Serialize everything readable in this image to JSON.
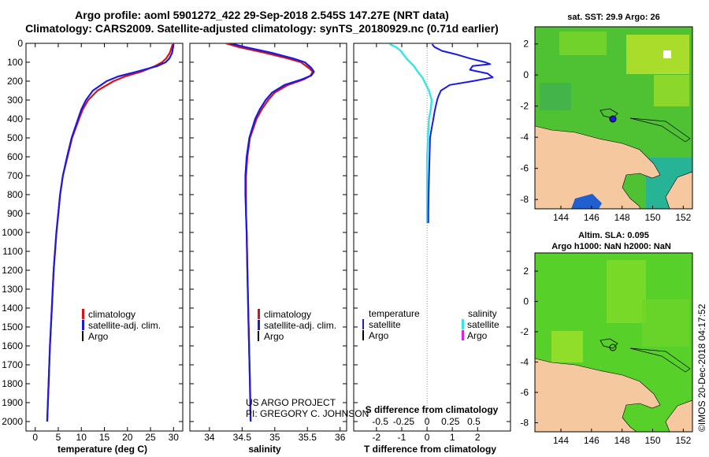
{
  "header": {
    "title_line1": "Argo profile: aoml 5901272_422 29-Sep-2018 2.545S 147.27E (NRT data)",
    "title_line2": "Climatology: CARS2009. Satellite-adjusted climatology: synTS_20180929.nc (0.71d earlier)"
  },
  "colors": {
    "climatology": "#dd1111",
    "satellite": "#1a1ae6",
    "argo": "#000000",
    "sal_satellite": "#33e6e6",
    "sal_argo": "#dd22dd",
    "land": "#f5c8a0",
    "sea_green": "#4fc233"
  },
  "depth_axis": {
    "ylim": [
      0,
      2050
    ],
    "ticks": [
      "0",
      "100",
      "200",
      "300",
      "400",
      "500",
      "600",
      "700",
      "800",
      "900",
      "1000",
      "1100",
      "1200",
      "1300",
      "1400",
      "1500",
      "1600",
      "1700",
      "1800",
      "1900",
      "2000"
    ]
  },
  "chart_data": [
    {
      "type": "line",
      "name": "temperature-profile",
      "xlabel": "temperature (deg C)",
      "xlim": [
        -2,
        32
      ],
      "xticks": [
        "0",
        "5",
        "10",
        "15",
        "20",
        "25",
        "30"
      ],
      "series": [
        {
          "name": "climatology",
          "color_key": "climatology",
          "depth": [
            5,
            20,
            50,
            80,
            100,
            120,
            150,
            175,
            200,
            250,
            300,
            350,
            400,
            500,
            600,
            700,
            800,
            900,
            1000,
            1200,
            1400,
            1600,
            1800,
            2000
          ],
          "values": [
            29.8,
            29.6,
            29.2,
            28.4,
            27.5,
            26.0,
            23.0,
            19.5,
            17.0,
            13.5,
            11.5,
            10.3,
            9.5,
            8.0,
            7.0,
            6.0,
            5.4,
            5.0,
            4.6,
            4.0,
            3.6,
            3.2,
            2.9,
            2.6
          ]
        },
        {
          "name": "satellite-adj. clim.",
          "color_key": "satellite",
          "depth": [
            5,
            20,
            50,
            80,
            100,
            120,
            150,
            175,
            200,
            250,
            300,
            350,
            400,
            500,
            600,
            700,
            800,
            900,
            1000,
            1200,
            1400,
            1600,
            1800,
            2000
          ],
          "values": [
            30.0,
            29.9,
            29.7,
            29.1,
            28.3,
            26.5,
            22.0,
            18.0,
            15.5,
            12.5,
            11.0,
            10.0,
            9.3,
            7.9,
            6.9,
            6.0,
            5.4,
            5.0,
            4.6,
            4.0,
            3.6,
            3.2,
            2.9,
            2.6
          ]
        }
      ],
      "legend": [
        "climatology",
        "satellite-adj. clim.",
        "Argo"
      ]
    },
    {
      "type": "line",
      "name": "salinity-profile",
      "xlabel": "salinity",
      "xlim": [
        33.7,
        36.1
      ],
      "xticks": [
        "34",
        "34.5",
        "35",
        "35.5",
        "36"
      ],
      "series": [
        {
          "name": "climatology",
          "color_key": "climatology",
          "depth": [
            0,
            20,
            50,
            80,
            100,
            130,
            150,
            170,
            190,
            220,
            260,
            300,
            350,
            400,
            500,
            600,
            700,
            800,
            900,
            1000,
            1200,
            1500,
            1800,
            2000
          ],
          "values": [
            34.25,
            34.45,
            34.85,
            35.2,
            35.4,
            35.52,
            35.58,
            35.55,
            35.45,
            35.2,
            35.0,
            34.9,
            34.8,
            34.72,
            34.62,
            34.58,
            34.56,
            34.56,
            34.56,
            34.57,
            34.58,
            34.6,
            34.62,
            34.63
          ]
        },
        {
          "name": "satellite-adj. clim.",
          "color_key": "satellite",
          "depth": [
            0,
            20,
            50,
            80,
            100,
            130,
            150,
            170,
            190,
            220,
            260,
            300,
            350,
            400,
            500,
            600,
            700,
            800,
            900,
            1000,
            1200,
            1500,
            1800,
            2000
          ],
          "values": [
            34.32,
            34.55,
            34.95,
            35.28,
            35.46,
            35.56,
            35.6,
            35.56,
            35.42,
            35.15,
            34.96,
            34.86,
            34.77,
            34.7,
            34.61,
            34.57,
            34.55,
            34.55,
            34.56,
            34.57,
            34.58,
            34.6,
            34.62,
            34.63
          ]
        }
      ],
      "legend": [
        "climatology",
        "satellite-adj. clim.",
        "Argo"
      ],
      "annotation": [
        "US ARGO PROJECT",
        "PI: GREGORY C. JOHNSON"
      ]
    },
    {
      "type": "line",
      "name": "difference-profile",
      "xlabel_bottom": "T difference from climatology",
      "xlabel_top": "S difference from climatology",
      "xlim_T": [
        -2.9,
        3.3
      ],
      "xticks_T": [
        "-2",
        "-1",
        "0",
        "1",
        "2"
      ],
      "xticks_S": [
        "-0.5",
        "-0.25",
        "0",
        "0.25",
        "0.5"
      ],
      "series": [
        {
          "name": "temperature satellite",
          "color_key": "satellite",
          "depth": [
            5,
            20,
            40,
            60,
            80,
            100,
            110,
            120,
            140,
            160,
            180,
            200,
            220,
            250,
            280,
            300,
            330,
            360,
            400,
            450,
            500,
            600,
            700,
            800,
            900,
            950
          ],
          "values": [
            0.2,
            0.3,
            0.6,
            1.2,
            1.7,
            2.3,
            2.5,
            1.8,
            1.7,
            2.4,
            2.6,
            1.8,
            0.9,
            0.55,
            0.45,
            0.4,
            0.35,
            0.3,
            0.25,
            0.18,
            0.12,
            0.1,
            0.08,
            0.06,
            0.05,
            0.05
          ]
        },
        {
          "name": "salinity satellite",
          "color_key": "sal_satellite",
          "depth": [
            5,
            20,
            40,
            60,
            80,
            100,
            120,
            150,
            180,
            200,
            250,
            300,
            350,
            400,
            500,
            600,
            700,
            800,
            900,
            950
          ],
          "values": [
            -0.4,
            -0.33,
            -0.28,
            -0.25,
            -0.22,
            -0.18,
            -0.14,
            -0.1,
            -0.05,
            -0.03,
            0.02,
            0.05,
            0.04,
            0.02,
            0.01,
            0.0,
            0.0,
            0.0,
            0.0,
            0.0
          ]
        }
      ],
      "legend": {
        "left_title": "temperature",
        "right_title": "salinity",
        "left": [
          "satellite",
          "Argo"
        ],
        "right": [
          "satellite",
          "Argo"
        ]
      }
    }
  ],
  "maps": {
    "sst": {
      "title": "sat. SST: 29.9 Argo: 26",
      "yticks": [
        "2",
        "0",
        "-2",
        "-4",
        "-6",
        "-8"
      ],
      "xticks": [
        "144",
        "146",
        "148",
        "150",
        "152"
      ]
    },
    "sla": {
      "title_line1": "Altim. SLA: 0.095",
      "title_line2": "Argo h1000: NaN h2000: NaN",
      "yticks": [
        "2",
        "0",
        "-2",
        "-4",
        "-6",
        "-8"
      ],
      "xticks": [
        "144",
        "146",
        "148",
        "150",
        "152"
      ]
    }
  },
  "footer": {
    "side_text": "©IMOS 20-Dec-2018 04:17:52"
  }
}
